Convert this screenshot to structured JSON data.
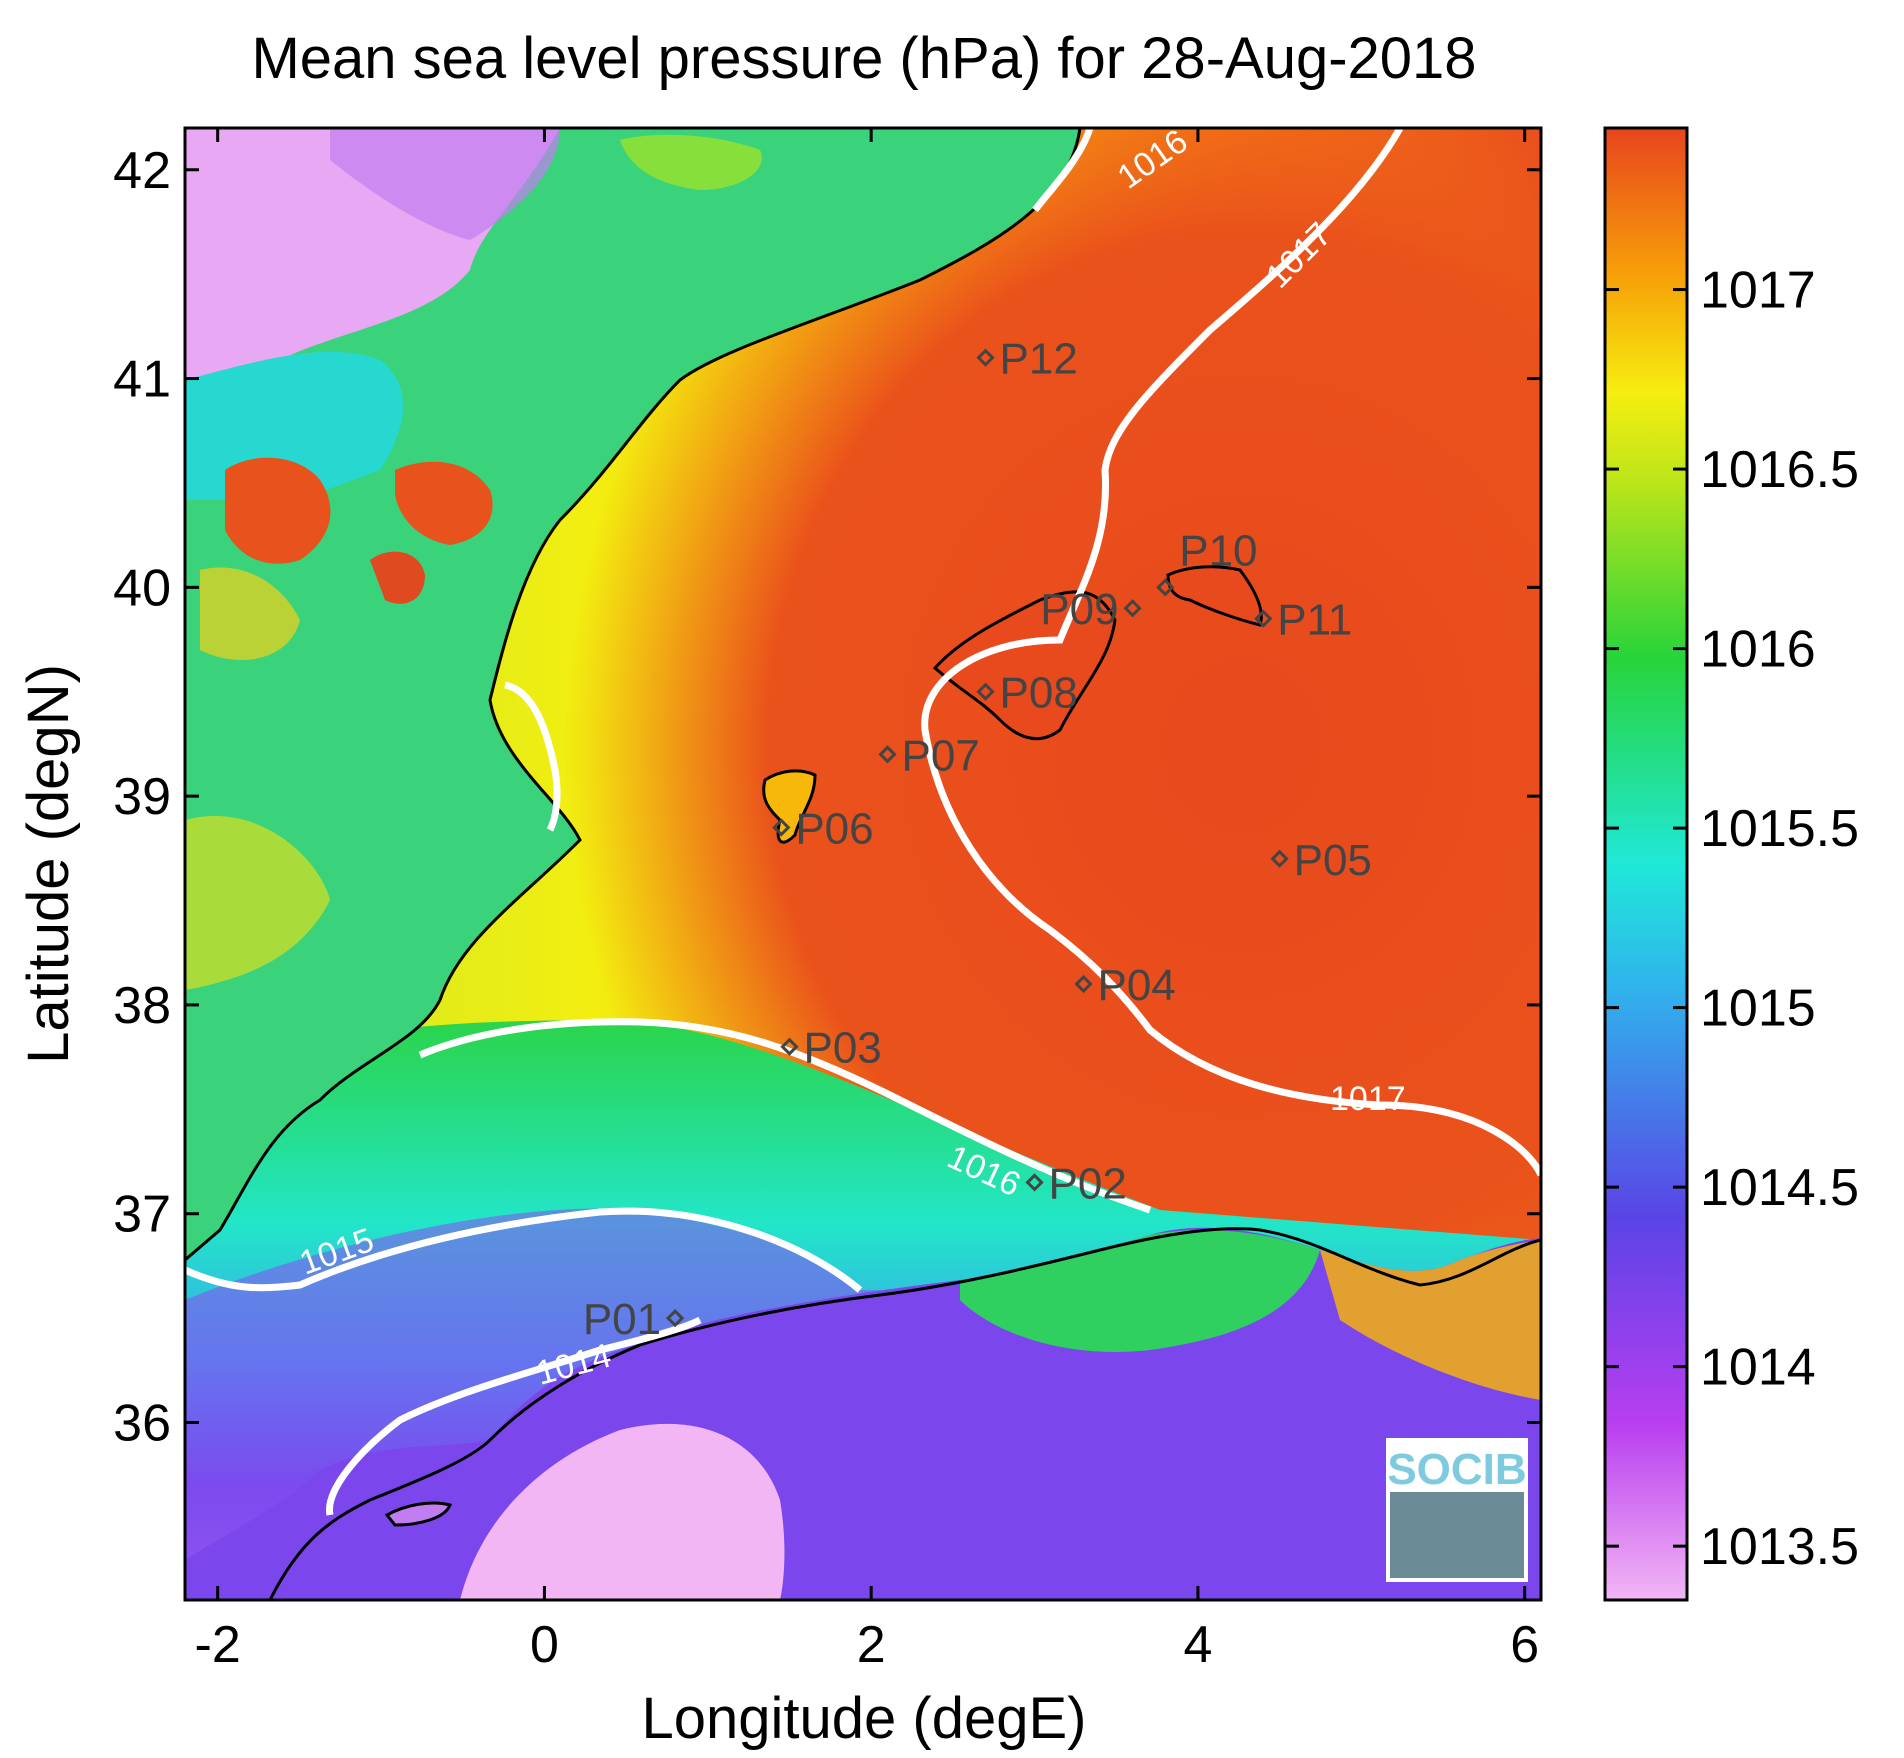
{
  "title": "Mean sea level pressure (hPa) for 28-Aug-2018",
  "xlabel": "Longitude (degE)",
  "ylabel": "Latitude (degN)",
  "logo": "SOCIB",
  "colors": {
    "low": "#f2b6f4",
    "violet": "#7b3ff0",
    "blue": "#3aa8ee",
    "cyan": "#22e6e0",
    "green": "#2fcf3d",
    "yellow": "#f2ee10",
    "orange": "#f79a08",
    "high": "#e8491d",
    "contour": "#ffffff",
    "coast": "#000000"
  },
  "chart_data": {
    "type": "heatmap",
    "title": "Mean sea level pressure (hPa) for 28-Aug-2018",
    "xlabel": "Longitude (degE)",
    "ylabel": "Latitude (degN)",
    "xlim": [
      -2.2,
      6.1
    ],
    "ylim": [
      35.15,
      42.2
    ],
    "xticks": [
      "-2",
      "0",
      "2",
      "4",
      "6"
    ],
    "yticks": [
      "36",
      "37",
      "38",
      "39",
      "40",
      "41",
      "42"
    ],
    "colorbar": {
      "range": [
        1013.35,
        1017.45
      ],
      "ticks": [
        "1013.5",
        "1014",
        "1014.5",
        "1015",
        "1015.5",
        "1016",
        "1016.5",
        "1017"
      ]
    },
    "contours": [
      {
        "label": "1014",
        "value": 1014
      },
      {
        "label": "1015",
        "value": 1015
      },
      {
        "label": "1016",
        "value": 1016
      },
      {
        "label": "1017",
        "value": 1017
      }
    ],
    "stations": [
      {
        "name": "P01",
        "lon": 0.8,
        "lat": 36.5
      },
      {
        "name": "P02",
        "lon": 3.0,
        "lat": 37.15
      },
      {
        "name": "P03",
        "lon": 1.5,
        "lat": 37.8
      },
      {
        "name": "P04",
        "lon": 3.3,
        "lat": 38.1
      },
      {
        "name": "P05",
        "lon": 4.5,
        "lat": 38.7
      },
      {
        "name": "P06",
        "lon": 1.45,
        "lat": 38.85
      },
      {
        "name": "P07",
        "lon": 2.1,
        "lat": 39.2
      },
      {
        "name": "P08",
        "lon": 2.7,
        "lat": 39.5
      },
      {
        "name": "P09",
        "lon": 3.6,
        "lat": 39.9
      },
      {
        "name": "P10",
        "lon": 3.8,
        "lat": 40.0
      },
      {
        "name": "P11",
        "lon": 4.4,
        "lat": 39.85
      },
      {
        "name": "P12",
        "lon": 2.7,
        "lat": 41.1
      }
    ]
  }
}
